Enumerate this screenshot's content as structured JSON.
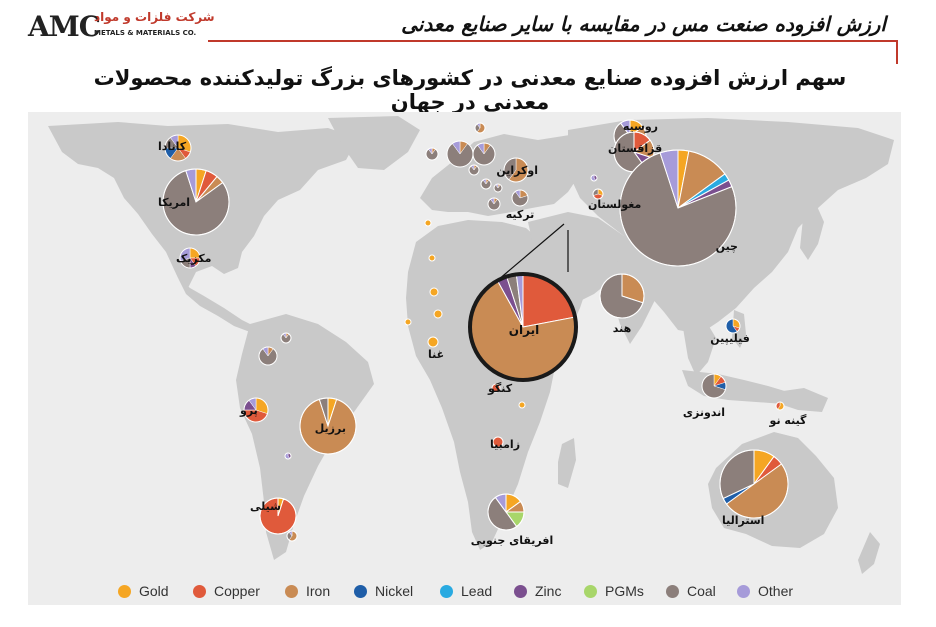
{
  "header": {
    "logo_mark": "AMC",
    "logo_fa": "شرکت فلزات و مواد",
    "logo_en": "METALS & MATERIALS CO.",
    "title": "ارزش افزوده صنعت مس در مقایسه با سایر صنایع معدنی"
  },
  "main_title": "سهم ارزش افزوده صنایع معدنی در کشورهای بزرگ تولیدکننده محصولات معدنی در جهان",
  "colors": {
    "land": "#c9c9c9",
    "sea": "#ededed",
    "accent": "#c0392b",
    "Gold": "#f5a623",
    "Copper": "#e05a3b",
    "Iron": "#c98b54",
    "Nickel": "#1f5ea8",
    "Lead": "#29aae1",
    "Zinc": "#7b4f8f",
    "PGMs": "#a8d66a",
    "Coal": "#8c7f7b",
    "Other": "#a69bd9"
  },
  "legend": [
    "Gold",
    "Copper",
    "Iron",
    "Nickel",
    "Lead",
    "Zinc",
    "PGMs",
    "Coal",
    "Other"
  ],
  "countries": [
    {
      "name": "کانادا",
      "shares": {
        "Gold": 0.3,
        "Copper": 0.1,
        "Iron": 0.2,
        "Nickel": 0.15,
        "Coal": 0.15,
        "Other": 0.1
      }
    },
    {
      "name": "امریکا",
      "shares": {
        "Gold": 0.05,
        "Copper": 0.06,
        "Iron": 0.04,
        "Coal": 0.8,
        "Other": 0.05
      }
    },
    {
      "name": "مکزیک",
      "shares": {
        "Gold": 0.25,
        "Copper": 0.15,
        "Zinc": 0.1,
        "Coal": 0.2,
        "Other": 0.3
      }
    },
    {
      "name": "پرو",
      "shares": {
        "Gold": 0.3,
        "Copper": 0.45,
        "Zinc": 0.15,
        "Other": 0.1
      }
    },
    {
      "name": "برزیل",
      "shares": {
        "Gold": 0.05,
        "Iron": 0.9,
        "Coal": 0.05
      }
    },
    {
      "name": "شیلی",
      "shares": {
        "Gold": 0.05,
        "Copper": 0.95
      }
    },
    {
      "name": "غنا",
      "shares": {
        "Gold": 1.0
      }
    },
    {
      "name": "کنگو",
      "shares": {
        "Copper": 0.9,
        "Gold": 0.1
      }
    },
    {
      "name": "زامبیا",
      "shares": {
        "Copper": 1.0
      }
    },
    {
      "name": "افریقای جنوبی",
      "shares": {
        "Gold": 0.15,
        "Iron": 0.1,
        "PGMs": 0.15,
        "Coal": 0.5,
        "Other": 0.1
      }
    },
    {
      "name": "ایران",
      "shares": {
        "Iron": 0.7,
        "Copper": 0.22,
        "Zinc": 0.03,
        "Coal": 0.03,
        "Other": 0.02
      }
    },
    {
      "name": "ترکیه",
      "shares": {
        "Coal": 0.7,
        "Iron": 0.2,
        "Other": 0.1
      }
    },
    {
      "name": "اوکراین",
      "shares": {
        "Iron": 0.6,
        "Coal": 0.4
      }
    },
    {
      "name": "روسیه",
      "shares": {
        "Gold": 0.15,
        "Iron": 0.1,
        "Nickel": 0.05,
        "Coal": 0.6,
        "Other": 0.1
      }
    },
    {
      "name": "قزاقستان",
      "shares": {
        "Copper": 0.15,
        "Iron": 0.15,
        "Zinc": 0.1,
        "Coal": 0.6
      }
    },
    {
      "name": "مغولستان",
      "shares": {
        "Copper": 0.4,
        "Gold": 0.3,
        "Coal": 0.3
      }
    },
    {
      "name": "چین",
      "shares": {
        "Gold": 0.03,
        "Iron": 0.12,
        "Lead": 0.02,
        "Zinc": 0.02,
        "Coal": 0.76,
        "Other": 0.05
      }
    },
    {
      "name": "هند",
      "shares": {
        "Iron": 0.3,
        "Coal": 0.7
      }
    },
    {
      "name": "فیلیپین",
      "shares": {
        "Gold": 0.3,
        "Nickel": 0.6,
        "Copper": 0.1
      }
    },
    {
      "name": "اندونزی",
      "shares": {
        "Gold": 0.1,
        "Copper": 0.1,
        "Nickel": 0.1,
        "Coal": 0.7
      }
    },
    {
      "name": "گینه نو",
      "shares": {
        "Gold": 0.6,
        "Copper": 0.4
      }
    },
    {
      "name": "استرالیا",
      "shares": {
        "Gold": 0.1,
        "Copper": 0.05,
        "Iron": 0.5,
        "Nickel": 0.03,
        "Coal": 0.32
      }
    }
  ],
  "unlabeled_shares": {
    "coal_pie": {
      "Coal": 0.8,
      "Iron": 0.1,
      "Other": 0.1
    },
    "iron_pie": {
      "Iron": 0.6,
      "Coal": 0.3,
      "Other": 0.1
    },
    "gold_dot": {
      "Gold": 1.0
    },
    "other_dot": {
      "Other": 0.6,
      "Zinc": 0.4
    }
  }
}
